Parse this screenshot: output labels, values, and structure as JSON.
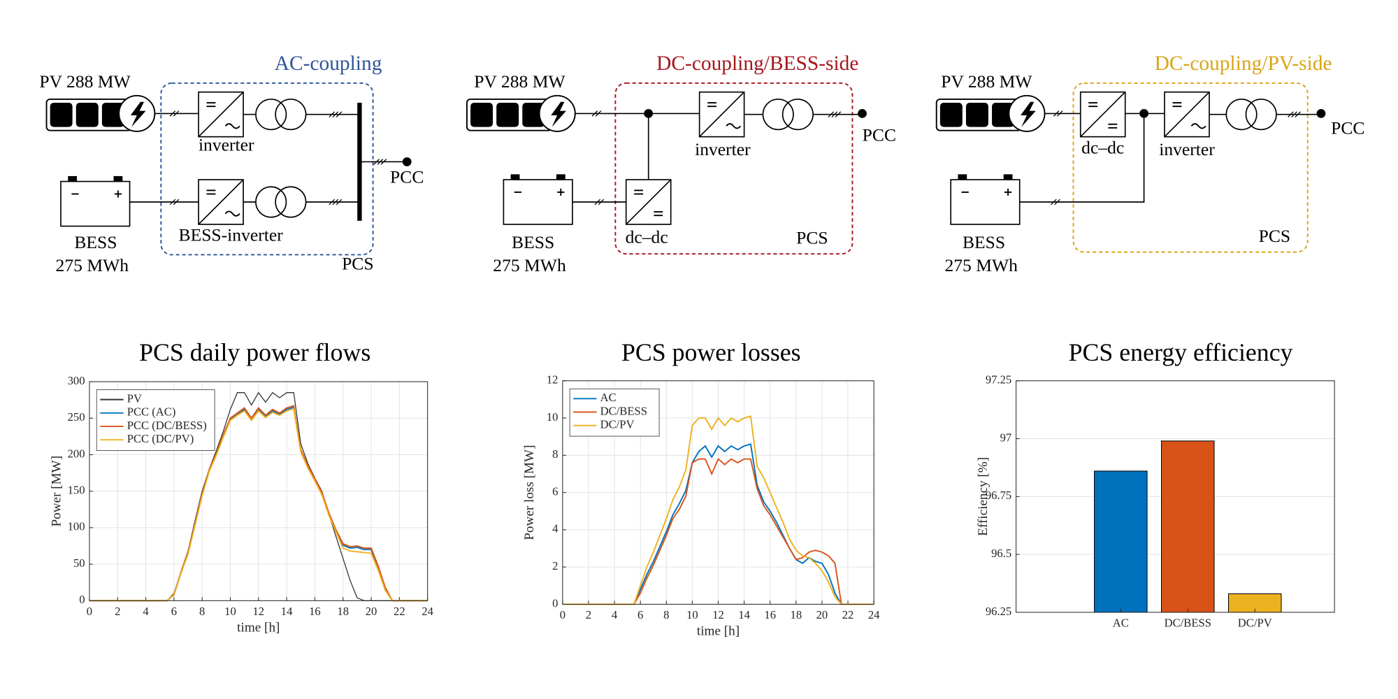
{
  "diagrams": [
    {
      "title": "AC-coupling",
      "color": "#2f5597",
      "pv": "PV 288 MW",
      "converters": [
        "inverter",
        "BESS-inverter"
      ],
      "bess": "BESS",
      "capacity": "275 MWh",
      "pcc": "PCC",
      "pcs": "PCS"
    },
    {
      "title": "DC-coupling/BESS-side",
      "color": "#a5161d",
      "pv": "PV 288 MW",
      "converters": [
        "inverter",
        "dc–dc"
      ],
      "bess": "BESS",
      "capacity": "275 MWh",
      "pcc": "PCC",
      "pcs": "PCS"
    },
    {
      "title": "DC-coupling/PV-side",
      "color": "#d9a514",
      "pv": "PV 288 MW",
      "converters": [
        "dc–dc",
        "inverter"
      ],
      "bess": "BESS",
      "capacity": "275 MWh",
      "pcc": "PCC",
      "pcs": "PCS"
    }
  ],
  "chart_data": [
    {
      "type": "line",
      "title": "PCS daily power flows",
      "xlabel": "time [h]",
      "ylabel": "Power [MW]",
      "x": [
        0,
        0.5,
        1,
        1.5,
        2,
        2.5,
        3,
        3.5,
        4,
        4.5,
        5,
        5.5,
        6,
        6.5,
        7,
        7.5,
        8,
        8.5,
        9,
        9.5,
        10,
        10.5,
        11,
        11.5,
        12,
        12.5,
        13,
        13.5,
        14,
        14.5,
        15,
        15.5,
        16,
        16.5,
        17,
        17.5,
        18,
        18.5,
        19,
        19.5,
        20,
        20.5,
        21,
        21.5,
        22,
        22.5,
        23,
        23.5,
        24
      ],
      "series": [
        {
          "name": "PV",
          "color": "#333333",
          "values": [
            0,
            0,
            0,
            0,
            0,
            0,
            0,
            0,
            0,
            0,
            0,
            0,
            10,
            40,
            68,
            110,
            150,
            180,
            205,
            232,
            262,
            285,
            285,
            268,
            285,
            272,
            285,
            278,
            285,
            285,
            215,
            188,
            168,
            150,
            118,
            88,
            58,
            28,
            4,
            0,
            0,
            0,
            0,
            0,
            0,
            0,
            0,
            0,
            0
          ]
        },
        {
          "name": "PCC (AC)",
          "color": "#0072bd",
          "values": [
            0,
            0,
            0,
            0,
            0,
            0,
            0,
            0,
            0,
            0,
            0,
            0,
            8,
            38,
            65,
            105,
            145,
            178,
            200,
            225,
            248,
            255,
            262,
            248,
            262,
            252,
            260,
            255,
            262,
            265,
            205,
            183,
            165,
            146,
            118,
            95,
            76,
            72,
            73,
            70,
            70,
            45,
            16,
            0,
            0,
            0,
            0,
            0,
            0
          ]
        },
        {
          "name": "PCC (DC/BESS)",
          "color": "#d95319",
          "values": [
            0,
            0,
            0,
            0,
            0,
            0,
            0,
            0,
            0,
            0,
            0,
            0,
            8,
            39,
            66,
            106,
            146,
            179,
            201,
            227,
            250,
            257,
            264,
            250,
            264,
            254,
            262,
            257,
            264,
            267,
            207,
            185,
            167,
            148,
            120,
            97,
            78,
            74,
            75,
            72,
            72,
            47,
            18,
            0,
            0,
            0,
            0,
            0,
            0
          ]
        },
        {
          "name": "PCC (DC/PV)",
          "color": "#edb120",
          "values": [
            0,
            0,
            0,
            0,
            0,
            0,
            0,
            0,
            0,
            0,
            0,
            0,
            8,
            38,
            64,
            104,
            144,
            177,
            199,
            224,
            247,
            254,
            260,
            247,
            260,
            251,
            258,
            254,
            260,
            263,
            204,
            182,
            164,
            145,
            117,
            94,
            72,
            68,
            67,
            66,
            65,
            42,
            14,
            0,
            0,
            0,
            0,
            0,
            0
          ]
        }
      ],
      "xlim": [
        0,
        24
      ],
      "xticks": [
        0,
        2,
        4,
        6,
        8,
        10,
        12,
        14,
        16,
        18,
        20,
        22,
        24
      ],
      "ylim": [
        0,
        300
      ],
      "yticks": [
        0,
        50,
        100,
        150,
        200,
        250,
        300
      ],
      "grid": true,
      "legend": "upper left"
    },
    {
      "type": "line",
      "title": "PCS power losses",
      "xlabel": "time [h]",
      "ylabel": "Power loss [MW]",
      "x": [
        0,
        0.5,
        1,
        1.5,
        2,
        2.5,
        3,
        3.5,
        4,
        4.5,
        5,
        5.5,
        6,
        6.5,
        7,
        7.5,
        8,
        8.5,
        9,
        9.5,
        10,
        10.5,
        11,
        11.5,
        12,
        12.5,
        13,
        13.5,
        14,
        14.5,
        15,
        15.5,
        16,
        16.5,
        17,
        17.5,
        18,
        18.5,
        19,
        19.5,
        20,
        20.5,
        21,
        21.5,
        22,
        22.5,
        23,
        23.5,
        24
      ],
      "series": [
        {
          "name": "AC",
          "color": "#0072bd",
          "values": [
            0,
            0,
            0,
            0,
            0,
            0,
            0,
            0,
            0,
            0,
            0,
            0,
            0.8,
            1.6,
            2.3,
            3.1,
            3.9,
            4.8,
            5.4,
            6.1,
            7.6,
            8.2,
            8.5,
            7.9,
            8.5,
            8.2,
            8.5,
            8.3,
            8.5,
            8.6,
            6.4,
            5.5,
            5.0,
            4.4,
            3.7,
            3.0,
            2.4,
            2.2,
            2.5,
            2.3,
            2.2,
            1.6,
            0.6,
            0,
            0,
            0,
            0,
            0,
            0
          ]
        },
        {
          "name": "DC/BESS",
          "color": "#d95319",
          "values": [
            0,
            0,
            0,
            0,
            0,
            0,
            0,
            0,
            0,
            0,
            0,
            0,
            0.6,
            1.4,
            2.1,
            2.9,
            3.7,
            4.6,
            5.1,
            5.8,
            7.6,
            7.8,
            7.8,
            7.0,
            7.8,
            7.5,
            7.8,
            7.6,
            7.8,
            7.8,
            6.2,
            5.3,
            4.8,
            4.2,
            3.6,
            3.0,
            2.4,
            2.5,
            2.8,
            2.9,
            2.8,
            2.6,
            2.2,
            0,
            0,
            0,
            0,
            0,
            0
          ]
        },
        {
          "name": "DC/PV",
          "color": "#edb120",
          "values": [
            0,
            0,
            0,
            0,
            0,
            0,
            0,
            0,
            0,
            0,
            0,
            0,
            1.0,
            2.0,
            2.8,
            3.7,
            4.6,
            5.6,
            6.3,
            7.2,
            9.6,
            10.0,
            10.0,
            9.4,
            10.0,
            9.6,
            10.0,
            9.8,
            10.0,
            10.1,
            7.4,
            6.8,
            6.0,
            5.2,
            4.4,
            3.5,
            2.9,
            2.6,
            2.5,
            2.2,
            1.8,
            1.2,
            0.4,
            0,
            0,
            0,
            0,
            0,
            0
          ]
        }
      ],
      "xlim": [
        0,
        24
      ],
      "xticks": [
        0,
        2,
        4,
        6,
        8,
        10,
        12,
        14,
        16,
        18,
        20,
        22,
        24
      ],
      "ylim": [
        0,
        12
      ],
      "yticks": [
        0,
        2,
        4,
        6,
        8,
        10,
        12
      ],
      "grid": true,
      "legend": "upper left"
    },
    {
      "type": "bar",
      "title": "PCS energy efficiency",
      "ylabel": "Efficiency [%]",
      "categories": [
        "AC",
        "DC/BESS",
        "DC/PV"
      ],
      "values": [
        96.86,
        96.99,
        96.33
      ],
      "colors": [
        "#0072bd",
        "#d95319",
        "#edb120"
      ],
      "ylim": [
        96.25,
        97.25
      ],
      "yticks": [
        96.25,
        96.5,
        96.75,
        97,
        97.25
      ],
      "grid": true
    }
  ]
}
